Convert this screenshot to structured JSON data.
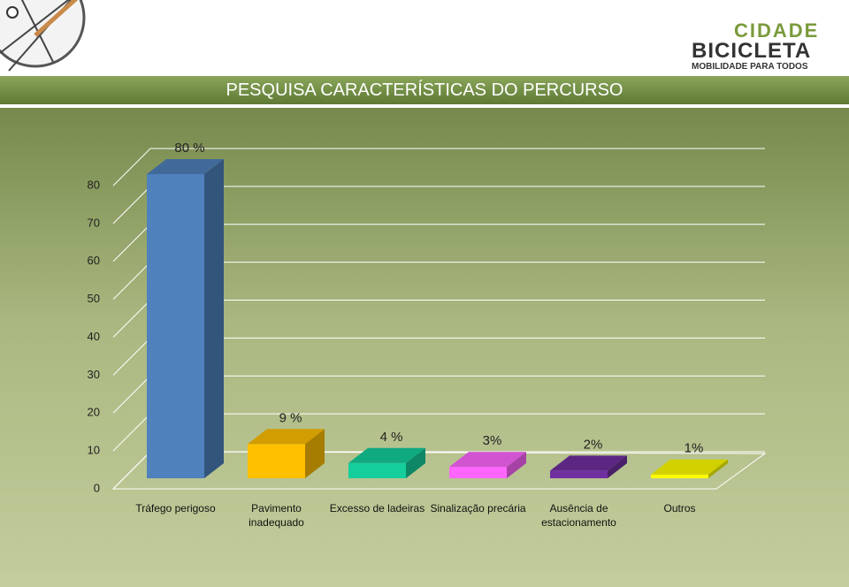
{
  "header": {
    "title": "PESQUISA CARACTERÍSTICAS DO PERCURSO",
    "logo_top": "CIDADE",
    "logo_main": "BICICLETA",
    "logo_tagline": "MOBILIDADE PARA TODOS"
  },
  "chart_data": {
    "type": "bar3d",
    "categories": [
      "Tráfego perigoso",
      "Pavimento inadequado",
      "Excesso de ladeiras",
      "Sinalização precária",
      "Ausência de estacionamento",
      "Outros"
    ],
    "values": [
      80,
      9,
      4,
      3,
      2,
      1
    ],
    "value_labels": [
      "80 %",
      "9 %",
      "4 %",
      "3%",
      "2%",
      "1%"
    ],
    "colors": [
      "#4f81bd",
      "#ffc000",
      "#14cf9c",
      "#ff66ff",
      "#7030a0",
      "#ffff00"
    ],
    "ylim": [
      0,
      80
    ],
    "yticks": [
      0,
      10,
      20,
      30,
      40,
      50,
      60,
      70,
      80
    ],
    "grid": true
  }
}
